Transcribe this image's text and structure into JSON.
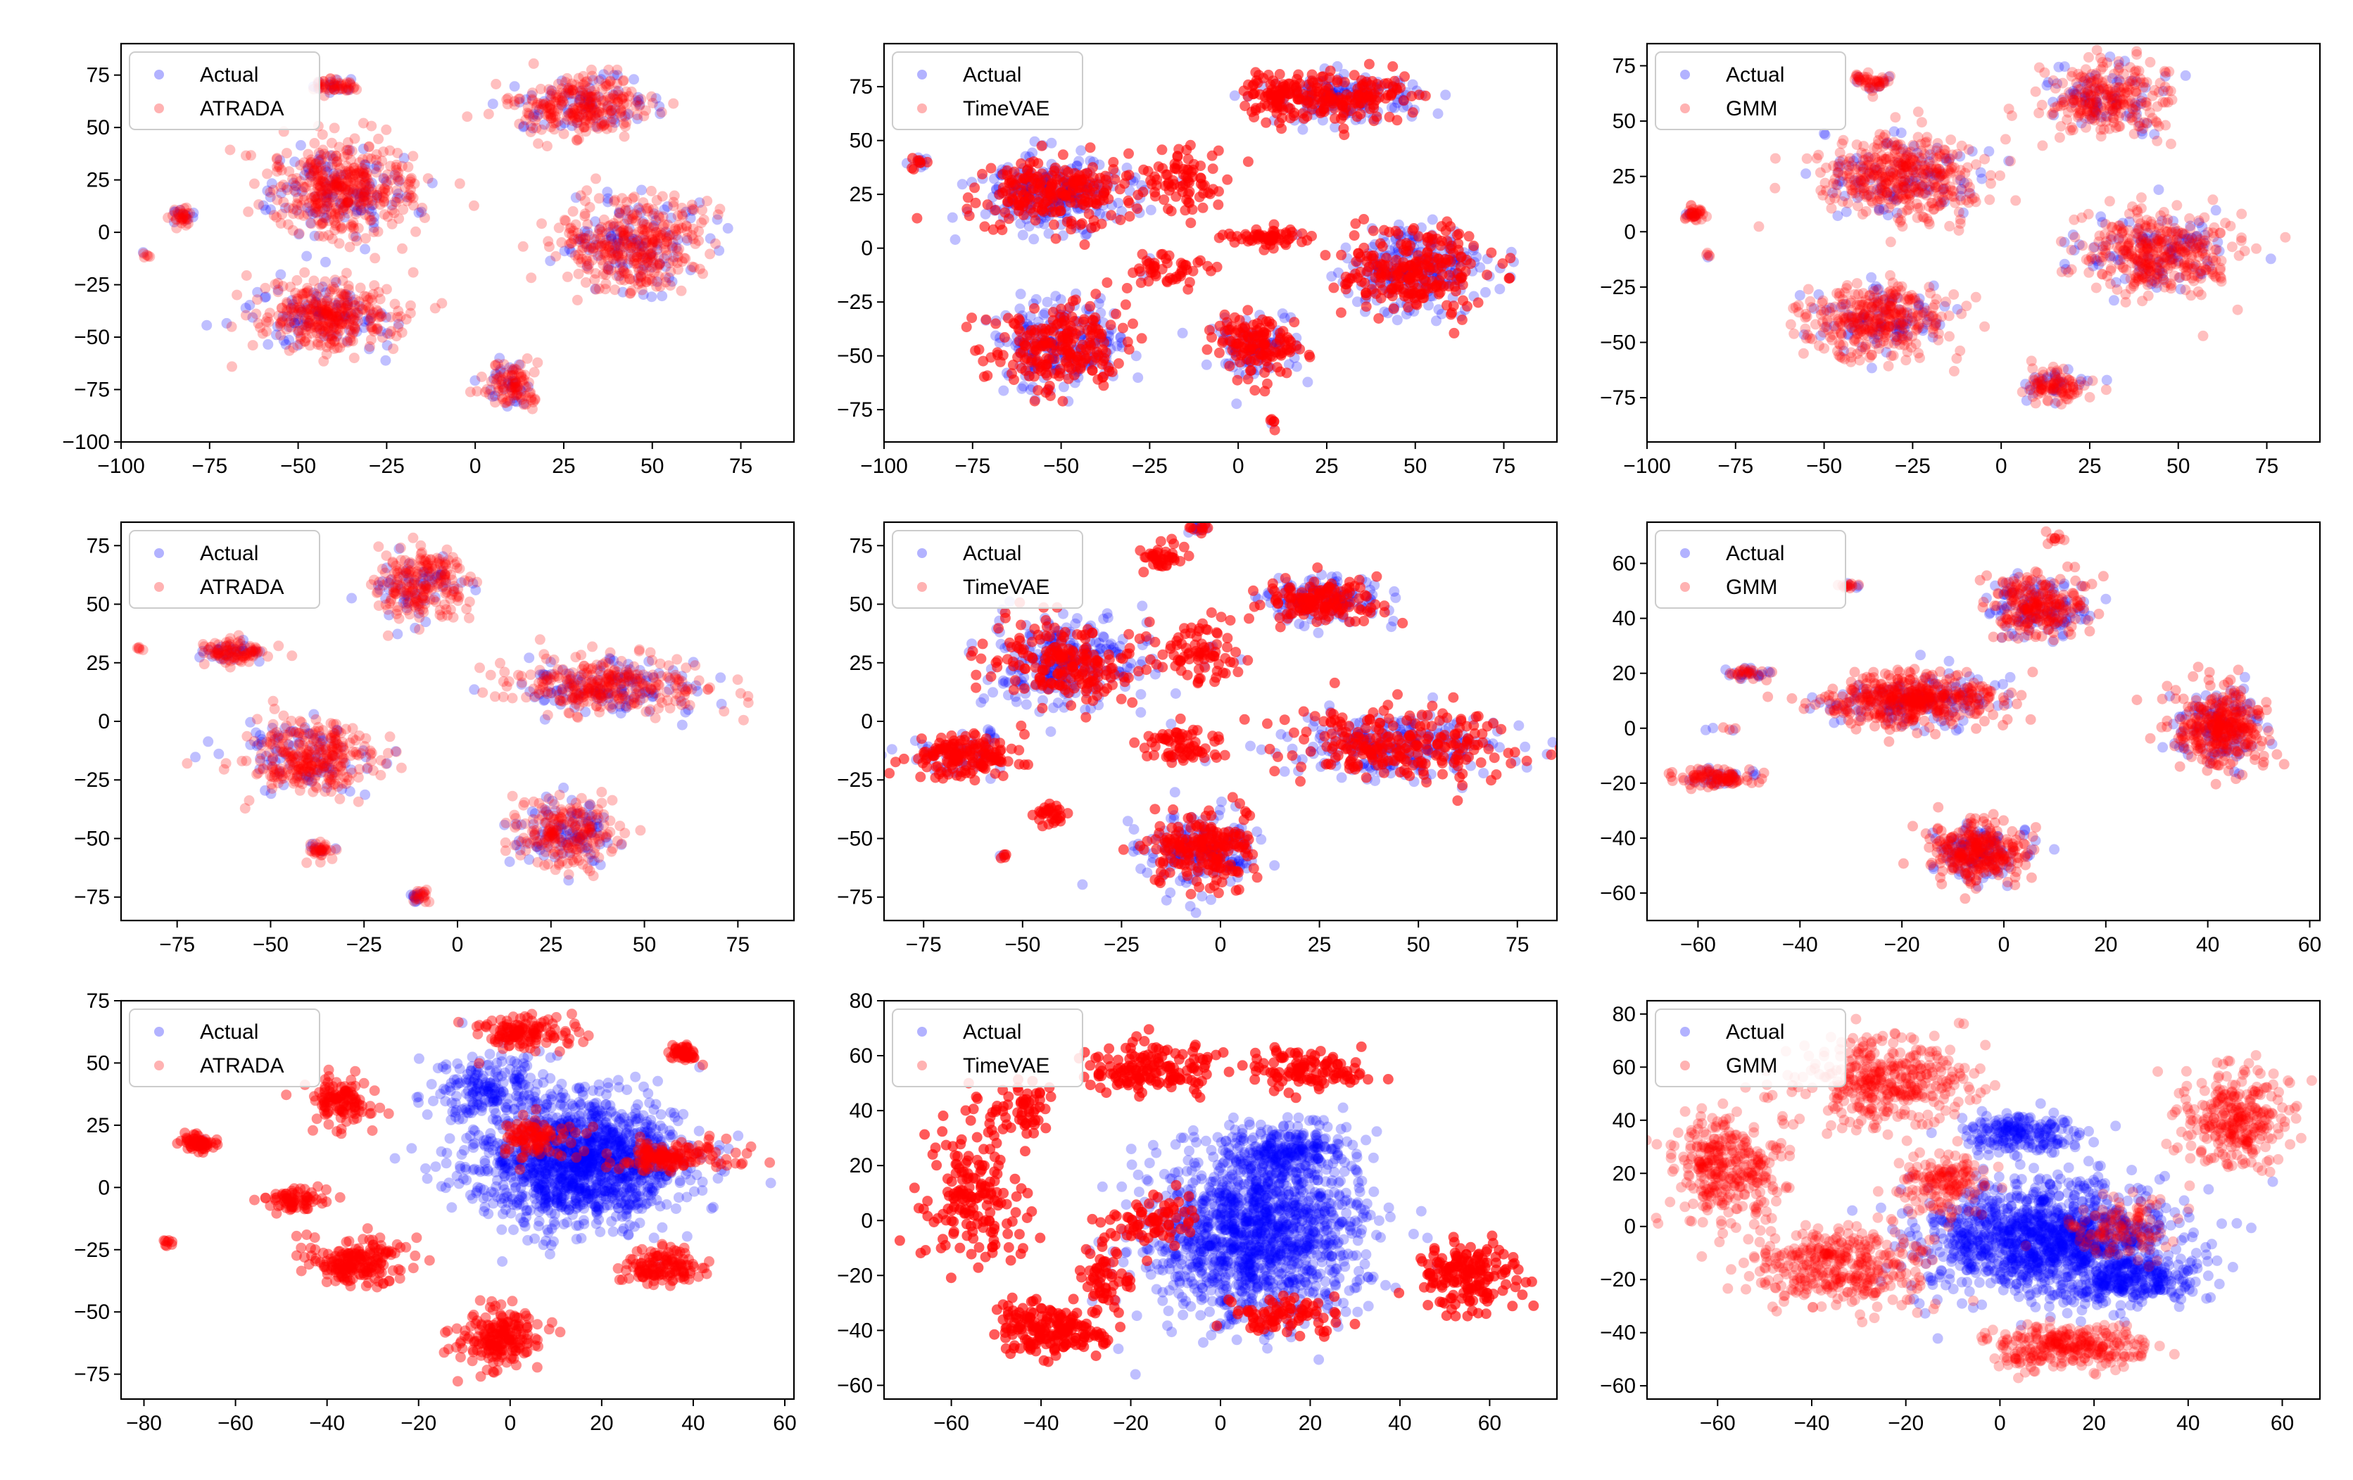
{
  "figure": {
    "rows": 3,
    "cols": 3
  },
  "colors": {
    "actual": "#0000ff",
    "generated": "#ff0000",
    "axis": "#000000",
    "background": "#ffffff"
  },
  "chart_data": [
    {
      "type": "scatter",
      "row": 0,
      "col": 0,
      "xlim": [
        -100,
        90
      ],
      "ylim": [
        -100,
        90
      ],
      "xticks": [
        -100,
        -75,
        -50,
        -25,
        0,
        25,
        50,
        75
      ],
      "yticks": [
        -100,
        -75,
        -50,
        -25,
        0,
        25,
        50,
        75
      ],
      "legend": {
        "position": "top-left",
        "entries": [
          "Actual",
          "ATRADA"
        ]
      },
      "series": [
        {
          "name": "Actual",
          "color": "blue",
          "alpha": 0.25
        },
        {
          "name": "ATRADA",
          "color": "red",
          "alpha": 0.25
        }
      ],
      "clusters": [
        {
          "x": -93,
          "y": -11,
          "sx": 1.5,
          "sy": 1.5,
          "n": 6,
          "mix": 0.8
        },
        {
          "x": -83,
          "y": 7,
          "sx": 3,
          "sy": 3,
          "n": 40,
          "mix": 0.8
        },
        {
          "x": -38,
          "y": 20,
          "sx": 17,
          "sy": 18,
          "n": 520,
          "mix": 0.75
        },
        {
          "x": -40,
          "y": 70,
          "sx": 5,
          "sy": 3,
          "n": 60,
          "mix": 0.85
        },
        {
          "x": 30,
          "y": 60,
          "sx": 17,
          "sy": 11,
          "n": 330,
          "mix": 0.75
        },
        {
          "x": -43,
          "y": -40,
          "sx": 17,
          "sy": 13,
          "n": 420,
          "mix": 0.75
        },
        {
          "x": 45,
          "y": -5,
          "sx": 17,
          "sy": 18,
          "n": 460,
          "mix": 0.75
        },
        {
          "x": 10,
          "y": -73,
          "sx": 7,
          "sy": 9,
          "n": 120,
          "mix": 0.75
        }
      ]
    },
    {
      "type": "scatter",
      "row": 0,
      "col": 1,
      "xlim": [
        -100,
        90
      ],
      "ylim": [
        -90,
        95
      ],
      "xticks": [
        -100,
        -75,
        -50,
        -25,
        0,
        25,
        50,
        75
      ],
      "yticks": [
        -75,
        -50,
        -25,
        0,
        25,
        50,
        75
      ],
      "legend": {
        "position": "top-left",
        "entries": [
          "Actual",
          "TimeVAE"
        ]
      },
      "series": [
        {
          "name": "Actual",
          "color": "blue",
          "alpha": 0.25
        },
        {
          "name": "TimeVAE",
          "color": "red",
          "alpha": 0.6
        }
      ],
      "clusters": [
        {
          "x": -90,
          "y": 40,
          "sx": 2,
          "sy": 2,
          "n": 15,
          "mix": 0.5
        },
        {
          "x": -52,
          "y": 25,
          "sx": 18,
          "sy": 14,
          "n": 480,
          "mix": 0.45
        },
        {
          "x": -50,
          "y": -45,
          "sx": 15,
          "sy": 16,
          "n": 420,
          "mix": 0.45
        },
        {
          "x": -15,
          "y": 30,
          "sx": 10,
          "sy": 15,
          "n": 80,
          "mix": 0.95
        },
        {
          "x": 10,
          "y": 70,
          "sx": 8,
          "sy": 10,
          "n": 80,
          "mix": 0.95
        },
        {
          "x": 30,
          "y": 70,
          "sx": 17,
          "sy": 9,
          "n": 300,
          "mix": 0.5
        },
        {
          "x": 50,
          "y": -10,
          "sx": 17,
          "sy": 16,
          "n": 460,
          "mix": 0.45
        },
        {
          "x": 5,
          "y": -45,
          "sx": 10,
          "sy": 12,
          "n": 220,
          "mix": 0.6
        },
        {
          "x": -20,
          "y": -10,
          "sx": 8,
          "sy": 8,
          "n": 50,
          "mix": 0.95
        },
        {
          "x": 10,
          "y": 5,
          "sx": 10,
          "sy": 3,
          "n": 60,
          "mix": 0.95
        },
        {
          "x": 10,
          "y": -82,
          "sx": 1,
          "sy": 2,
          "n": 6,
          "mix": 0.9
        }
      ]
    },
    {
      "type": "scatter",
      "row": 0,
      "col": 2,
      "xlim": [
        -100,
        90
      ],
      "ylim": [
        -95,
        85
      ],
      "xticks": [
        -100,
        -75,
        -50,
        -25,
        0,
        25,
        50,
        75
      ],
      "yticks": [
        -75,
        -50,
        -25,
        0,
        25,
        50,
        75
      ],
      "legend": {
        "position": "top-left",
        "entries": [
          "Actual",
          "GMM"
        ]
      },
      "series": [
        {
          "name": "Actual",
          "color": "blue",
          "alpha": 0.25
        },
        {
          "name": "GMM",
          "color": "red",
          "alpha": 0.25
        }
      ],
      "clusters": [
        {
          "x": -87,
          "y": 8,
          "sx": 2.5,
          "sy": 3,
          "n": 40,
          "mix": 0.8
        },
        {
          "x": -83,
          "y": -10,
          "sx": 1,
          "sy": 1,
          "n": 5,
          "mix": 0.9
        },
        {
          "x": -37,
          "y": 68,
          "sx": 5,
          "sy": 3,
          "n": 50,
          "mix": 0.8
        },
        {
          "x": -28,
          "y": 25,
          "sx": 18,
          "sy": 15,
          "n": 500,
          "mix": 0.78
        },
        {
          "x": 30,
          "y": 60,
          "sx": 15,
          "sy": 13,
          "n": 320,
          "mix": 0.78
        },
        {
          "x": -35,
          "y": -40,
          "sx": 17,
          "sy": 13,
          "n": 420,
          "mix": 0.78
        },
        {
          "x": 45,
          "y": -10,
          "sx": 18,
          "sy": 14,
          "n": 460,
          "mix": 0.78
        },
        {
          "x": 15,
          "y": -70,
          "sx": 8,
          "sy": 6,
          "n": 120,
          "mix": 0.8
        }
      ]
    },
    {
      "type": "scatter",
      "row": 1,
      "col": 0,
      "xlim": [
        -90,
        90
      ],
      "ylim": [
        -85,
        85
      ],
      "xticks": [
        -75,
        -50,
        -25,
        0,
        25,
        50,
        75
      ],
      "yticks": [
        -75,
        -50,
        -25,
        0,
        25,
        50,
        75
      ],
      "legend": {
        "position": "top-left",
        "entries": [
          "Actual",
          "ATRADA"
        ]
      },
      "series": [
        {
          "name": "Actual",
          "color": "blue",
          "alpha": 0.25
        },
        {
          "name": "ATRADA",
          "color": "red",
          "alpha": 0.25
        }
      ],
      "clusters": [
        {
          "x": -85,
          "y": 31,
          "sx": 1,
          "sy": 1,
          "n": 5,
          "mix": 0.8
        },
        {
          "x": -60,
          "y": 30,
          "sx": 8,
          "sy": 5,
          "n": 120,
          "mix": 0.75
        },
        {
          "x": -10,
          "y": 58,
          "sx": 10,
          "sy": 12,
          "n": 260,
          "mix": 0.75
        },
        {
          "x": -40,
          "y": -15,
          "sx": 15,
          "sy": 13,
          "n": 380,
          "mix": 0.75
        },
        {
          "x": 40,
          "y": 15,
          "sx": 22,
          "sy": 10,
          "n": 420,
          "mix": 0.7
        },
        {
          "x": -37,
          "y": -55,
          "sx": 3,
          "sy": 3,
          "n": 40,
          "mix": 0.75
        },
        {
          "x": 28,
          "y": -48,
          "sx": 12,
          "sy": 11,
          "n": 300,
          "mix": 0.65
        },
        {
          "x": -10,
          "y": -75,
          "sx": 2.5,
          "sy": 2,
          "n": 30,
          "mix": 0.7
        }
      ]
    },
    {
      "type": "scatter",
      "row": 1,
      "col": 1,
      "xlim": [
        -85,
        85
      ],
      "ylim": [
        -85,
        85
      ],
      "xticks": [
        -75,
        -50,
        -25,
        0,
        25,
        50,
        75
      ],
      "yticks": [
        -75,
        -50,
        -25,
        0,
        25,
        50,
        75
      ],
      "legend": {
        "position": "top-left",
        "entries": [
          "Actual",
          "TimeVAE"
        ]
      },
      "series": [
        {
          "name": "Actual",
          "color": "blue",
          "alpha": 0.25
        },
        {
          "name": "TimeVAE",
          "color": "red",
          "alpha": 0.6
        }
      ],
      "clusters": [
        {
          "x": -5,
          "y": 82,
          "sx": 2,
          "sy": 2,
          "n": 20,
          "mix": 0.4
        },
        {
          "x": -40,
          "y": 25,
          "sx": 16,
          "sy": 16,
          "n": 460,
          "mix": 0.45
        },
        {
          "x": 25,
          "y": 52,
          "sx": 13,
          "sy": 8,
          "n": 280,
          "mix": 0.5
        },
        {
          "x": -65,
          "y": -15,
          "sx": 12,
          "sy": 8,
          "n": 200,
          "mix": 0.75
        },
        {
          "x": -5,
          "y": -55,
          "sx": 13,
          "sy": 13,
          "n": 380,
          "mix": 0.5
        },
        {
          "x": 45,
          "y": -10,
          "sx": 22,
          "sy": 13,
          "n": 480,
          "mix": 0.45
        },
        {
          "x": -5,
          "y": 30,
          "sx": 8,
          "sy": 10,
          "n": 80,
          "mix": 0.95
        },
        {
          "x": -15,
          "y": 70,
          "sx": 5,
          "sy": 6,
          "n": 40,
          "mix": 0.95
        },
        {
          "x": -10,
          "y": -10,
          "sx": 8,
          "sy": 8,
          "n": 70,
          "mix": 0.95
        },
        {
          "x": -43,
          "y": -40,
          "sx": 3,
          "sy": 4,
          "n": 30,
          "mix": 0.95
        },
        {
          "x": -55,
          "y": -57,
          "sx": 1,
          "sy": 1,
          "n": 6,
          "mix": 0.8
        }
      ]
    },
    {
      "type": "scatter",
      "row": 1,
      "col": 2,
      "xlim": [
        -70,
        62
      ],
      "ylim": [
        -70,
        75
      ],
      "xticks": [
        -60,
        -40,
        -20,
        0,
        20,
        40,
        60
      ],
      "yticks": [
        -60,
        -40,
        -20,
        0,
        20,
        40,
        60
      ],
      "legend": {
        "position": "top-left",
        "entries": [
          "Actual",
          "GMM"
        ]
      },
      "series": [
        {
          "name": "Actual",
          "color": "blue",
          "alpha": 0.25
        },
        {
          "name": "GMM",
          "color": "red",
          "alpha": 0.3
        }
      ],
      "clusters": [
        {
          "x": -30,
          "y": 52,
          "sx": 2,
          "sy": 1,
          "n": 15,
          "mix": 0.7
        },
        {
          "x": 7,
          "y": 45,
          "sx": 8,
          "sy": 9,
          "n": 320,
          "mix": 0.7
        },
        {
          "x": -50,
          "y": 20,
          "sx": 4,
          "sy": 2,
          "n": 40,
          "mix": 0.6
        },
        {
          "x": -18,
          "y": 10,
          "sx": 14,
          "sy": 8,
          "n": 560,
          "mix": 0.75
        },
        {
          "x": -57,
          "y": -18,
          "sx": 6,
          "sy": 3,
          "n": 110,
          "mix": 0.8
        },
        {
          "x": -5,
          "y": -45,
          "sx": 8,
          "sy": 9,
          "n": 380,
          "mix": 0.75
        },
        {
          "x": 42,
          "y": 0,
          "sx": 8,
          "sy": 12,
          "n": 420,
          "mix": 0.75
        },
        {
          "x": -55,
          "y": 0,
          "sx": 2,
          "sy": 1,
          "n": 6,
          "mix": 0.5
        },
        {
          "x": 10,
          "y": 69,
          "sx": 2,
          "sy": 2,
          "n": 10,
          "mix": 0.9
        }
      ]
    },
    {
      "type": "scatter",
      "row": 2,
      "col": 0,
      "xlim": [
        -85,
        62
      ],
      "ylim": [
        -85,
        75
      ],
      "xticks": [
        -80,
        -60,
        -40,
        -20,
        0,
        20,
        40,
        60
      ],
      "yticks": [
        -75,
        -50,
        -25,
        0,
        25,
        50,
        75
      ],
      "legend": {
        "position": "top-left",
        "entries": [
          "Actual",
          "ATRADA"
        ]
      },
      "series": [
        {
          "name": "Actual",
          "color": "blue",
          "alpha": 0.25
        },
        {
          "name": "ATRADA",
          "color": "red",
          "alpha": 0.45
        }
      ],
      "clusters": [
        {
          "x": 15,
          "y": 10,
          "sx": 19,
          "sy": 20,
          "n": 1400,
          "mix": 0.0
        },
        {
          "x": -5,
          "y": 40,
          "sx": 12,
          "sy": 12,
          "n": 200,
          "mix": 0.0
        },
        {
          "x": -68,
          "y": 18,
          "sx": 3,
          "sy": 3,
          "n": 60,
          "mix": 0.9
        },
        {
          "x": -75,
          "y": -22,
          "sx": 1,
          "sy": 2,
          "n": 8,
          "mix": 1.0
        },
        {
          "x": -37,
          "y": 35,
          "sx": 6,
          "sy": 8,
          "n": 120,
          "mix": 1.0
        },
        {
          "x": -47,
          "y": -5,
          "sx": 5,
          "sy": 4,
          "n": 70,
          "mix": 1.0
        },
        {
          "x": -33,
          "y": -30,
          "sx": 9,
          "sy": 7,
          "n": 190,
          "mix": 1.0
        },
        {
          "x": 2,
          "y": 62,
          "sx": 8,
          "sy": 5,
          "n": 130,
          "mix": 1.0
        },
        {
          "x": 38,
          "y": 54,
          "sx": 3,
          "sy": 3,
          "n": 50,
          "mix": 1.0
        },
        {
          "x": 5,
          "y": 20,
          "sx": 6,
          "sy": 6,
          "n": 90,
          "mix": 1.0
        },
        {
          "x": 35,
          "y": 12,
          "sx": 10,
          "sy": 5,
          "n": 140,
          "mix": 1.0
        },
        {
          "x": 33,
          "y": -32,
          "sx": 7,
          "sy": 6,
          "n": 130,
          "mix": 1.0
        },
        {
          "x": -2,
          "y": -60,
          "sx": 7,
          "sy": 9,
          "n": 200,
          "mix": 1.0
        }
      ]
    },
    {
      "type": "scatter",
      "row": 2,
      "col": 1,
      "xlim": [
        -75,
        75
      ],
      "ylim": [
        -65,
        80
      ],
      "xticks": [
        -60,
        -40,
        -20,
        0,
        20,
        40,
        60
      ],
      "yticks": [
        -60,
        -40,
        -20,
        0,
        20,
        40,
        60,
        80
      ],
      "legend": {
        "position": "top-left",
        "entries": [
          "Actual",
          "TimeVAE"
        ]
      },
      "series": [
        {
          "name": "Actual",
          "color": "blue",
          "alpha": 0.25
        },
        {
          "name": "TimeVAE",
          "color": "red",
          "alpha": 0.65
        }
      ],
      "clusters": [
        {
          "x": 8,
          "y": -5,
          "sx": 20,
          "sy": 25,
          "n": 1400,
          "mix": 0.0
        },
        {
          "x": 15,
          "y": 25,
          "sx": 12,
          "sy": 8,
          "n": 250,
          "mix": 0.0
        },
        {
          "x": -15,
          "y": 55,
          "sx": 12,
          "sy": 8,
          "n": 150,
          "mix": 1.0
        },
        {
          "x": 20,
          "y": 55,
          "sx": 10,
          "sy": 6,
          "n": 110,
          "mix": 1.0
        },
        {
          "x": -55,
          "y": 10,
          "sx": 10,
          "sy": 20,
          "n": 170,
          "mix": 1.0
        },
        {
          "x": -45,
          "y": 40,
          "sx": 7,
          "sy": 7,
          "n": 60,
          "mix": 1.0
        },
        {
          "x": -38,
          "y": -40,
          "sx": 10,
          "sy": 8,
          "n": 180,
          "mix": 1.0
        },
        {
          "x": 55,
          "y": -20,
          "sx": 10,
          "sy": 10,
          "n": 170,
          "mix": 1.0
        },
        {
          "x": -15,
          "y": 0,
          "sx": 8,
          "sy": 8,
          "n": 70,
          "mix": 1.0
        },
        {
          "x": 15,
          "y": -35,
          "sx": 10,
          "sy": 6,
          "n": 80,
          "mix": 1.0
        },
        {
          "x": -25,
          "y": -20,
          "sx": 5,
          "sy": 10,
          "n": 60,
          "mix": 1.0
        }
      ]
    },
    {
      "type": "scatter",
      "row": 2,
      "col": 2,
      "xlim": [
        -75,
        68
      ],
      "ylim": [
        -65,
        85
      ],
      "xticks": [
        -60,
        -40,
        -20,
        0,
        20,
        40,
        60
      ],
      "yticks": [
        -60,
        -40,
        -20,
        0,
        20,
        40,
        60,
        80
      ],
      "legend": {
        "position": "top-left",
        "entries": [
          "Actual",
          "GMM"
        ]
      },
      "series": [
        {
          "name": "Actual",
          "color": "blue",
          "alpha": 0.25
        },
        {
          "name": "GMM",
          "color": "red",
          "alpha": 0.25
        }
      ],
      "clusters": [
        {
          "x": 10,
          "y": -5,
          "sx": 22,
          "sy": 18,
          "n": 1300,
          "mix": 0.0
        },
        {
          "x": 5,
          "y": 35,
          "sx": 10,
          "sy": 6,
          "n": 200,
          "mix": 0.0
        },
        {
          "x": 28,
          "y": -20,
          "sx": 12,
          "sy": 7,
          "n": 250,
          "mix": 0.0
        },
        {
          "x": -25,
          "y": 55,
          "sx": 15,
          "sy": 14,
          "n": 380,
          "mix": 1.0
        },
        {
          "x": -58,
          "y": 22,
          "sx": 10,
          "sy": 18,
          "n": 340,
          "mix": 1.0
        },
        {
          "x": -35,
          "y": -15,
          "sx": 16,
          "sy": 12,
          "n": 380,
          "mix": 1.0
        },
        {
          "x": 50,
          "y": 40,
          "sx": 10,
          "sy": 15,
          "n": 300,
          "mix": 1.0
        },
        {
          "x": 15,
          "y": -45,
          "sx": 14,
          "sy": 7,
          "n": 300,
          "mix": 1.0
        },
        {
          "x": -12,
          "y": 15,
          "sx": 8,
          "sy": 10,
          "n": 160,
          "mix": 1.0
        },
        {
          "x": 25,
          "y": 0,
          "sx": 10,
          "sy": 10,
          "n": 120,
          "mix": 1.0
        }
      ]
    }
  ]
}
